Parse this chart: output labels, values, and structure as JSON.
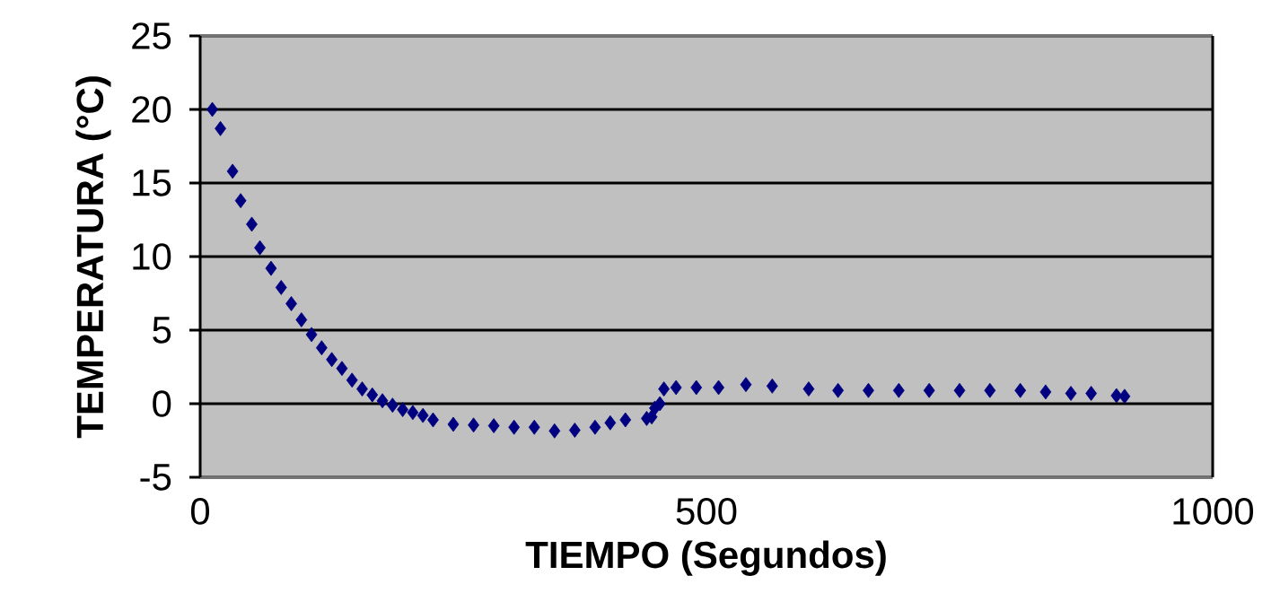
{
  "chart_data": {
    "type": "scatter",
    "xlabel": "TIEMPO (Segundos)",
    "ylabel": "TEMPERATURA (°C)",
    "xlim": [
      0,
      1000
    ],
    "ylim": [
      -5,
      25
    ],
    "xticks": [
      0,
      500,
      1000
    ],
    "yticks": [
      -5,
      0,
      5,
      10,
      15,
      20,
      25
    ],
    "grid": "y",
    "marker": "diamond",
    "series": [
      {
        "color": "#000080",
        "x": [
          12,
          20,
          32,
          40,
          51,
          59,
          70,
          80,
          90,
          100,
          110,
          120,
          130,
          140,
          150,
          160,
          170,
          180,
          190,
          200,
          210,
          220,
          230,
          250,
          270,
          290,
          310,
          330,
          350,
          370,
          390,
          405,
          420,
          441,
          446,
          449,
          454,
          458,
          470,
          490,
          512,
          539,
          565,
          601,
          630,
          660,
          690,
          720,
          750,
          780,
          810,
          835,
          860,
          880,
          905,
          913
        ],
        "values": [
          20,
          18.7,
          15.8,
          13.8,
          12.2,
          10.6,
          9.2,
          7.9,
          6.8,
          5.7,
          4.7,
          3.8,
          3.0,
          2.4,
          1.6,
          1.0,
          0.6,
          0.2,
          -0.1,
          -0.4,
          -0.6,
          -0.8,
          -1.1,
          -1.4,
          -1.45,
          -1.5,
          -1.6,
          -1.6,
          -1.85,
          -1.8,
          -1.6,
          -1.3,
          -1.1,
          -1.0,
          -0.9,
          -0.3,
          0.0,
          1.0,
          1.1,
          1.1,
          1.1,
          1.3,
          1.2,
          1.0,
          0.9,
          0.9,
          0.9,
          0.9,
          0.9,
          0.9,
          0.9,
          0.8,
          0.7,
          0.7,
          0.55,
          0.5
        ]
      }
    ]
  }
}
